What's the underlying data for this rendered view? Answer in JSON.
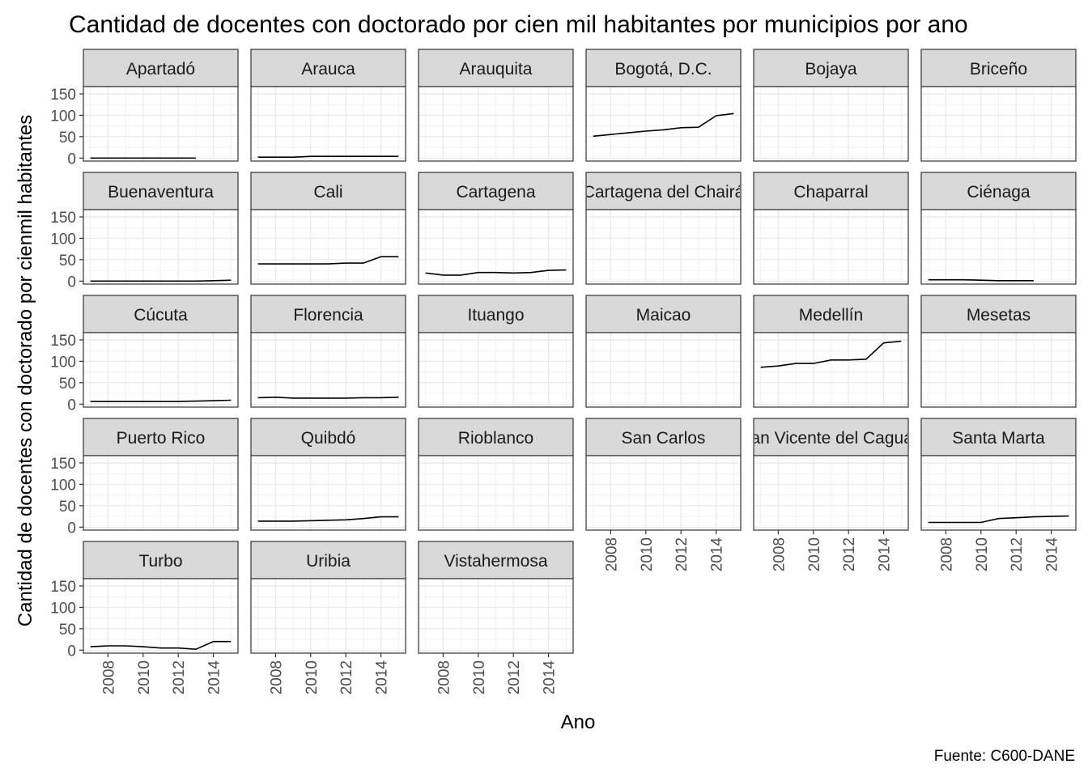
{
  "chart_data": {
    "type": "line",
    "title": "Cantidad de docentes con doctorado por cien mil habitantes por municipios por ano",
    "xlabel": "Ano",
    "ylabel": "Cantidad de docentes con doctorado por cienmil habitantes",
    "caption": "Fuente: C600-DANE",
    "xlim": [
      2006.6,
      2015.4
    ],
    "ylim": [
      -7,
      167
    ],
    "x_ticks": [
      2008,
      2010,
      2012,
      2014
    ],
    "y_ticks": [
      0,
      50,
      100,
      150
    ],
    "grid": true,
    "facet_layout": {
      "columns": 6,
      "rows": 5
    },
    "line_color": "#000000",
    "strip_color": "#d9d9d9",
    "grid_color": "#ebebeb",
    "series": [
      {
        "name": "Apartadó",
        "x": [
          2007,
          2008,
          2009,
          2010,
          2011,
          2012,
          2013
        ],
        "values": [
          0,
          0,
          0,
          0,
          0,
          0,
          0
        ]
      },
      {
        "name": "Arauca",
        "x": [
          2007,
          2008,
          2009,
          2010,
          2011,
          2012,
          2013,
          2014,
          2015
        ],
        "values": [
          2,
          2,
          2,
          4,
          4,
          4,
          4,
          4,
          4
        ]
      },
      {
        "name": "Arauquita",
        "x": [],
        "values": []
      },
      {
        "name": "Bogotá, D.C.",
        "x": [
          2007,
          2008,
          2009,
          2010,
          2011,
          2012,
          2013,
          2014,
          2015
        ],
        "values": [
          51,
          55,
          59,
          63,
          66,
          71,
          72,
          99,
          104
        ]
      },
      {
        "name": "Bojaya",
        "x": [],
        "values": []
      },
      {
        "name": "Briceño",
        "x": [],
        "values": []
      },
      {
        "name": "Buenaventura",
        "x": [
          2007,
          2008,
          2009,
          2010,
          2011,
          2012,
          2013,
          2014,
          2015
        ],
        "values": [
          0,
          0,
          0,
          0,
          0,
          0,
          0,
          1,
          2
        ]
      },
      {
        "name": "Cali",
        "x": [
          2007,
          2008,
          2009,
          2010,
          2011,
          2012,
          2013,
          2014,
          2015
        ],
        "values": [
          40,
          40,
          40,
          40,
          40,
          42,
          42,
          57,
          57
        ]
      },
      {
        "name": "Cartagena",
        "x": [
          2007,
          2008,
          2009,
          2010,
          2011,
          2012,
          2013,
          2014,
          2015
        ],
        "values": [
          19,
          14,
          14,
          20,
          20,
          19,
          20,
          25,
          26
        ]
      },
      {
        "name": "Cartagena del Chairá",
        "x": [],
        "values": []
      },
      {
        "name": "Chaparral",
        "x": [],
        "values": []
      },
      {
        "name": "Ciénaga",
        "x": [
          2007,
          2008,
          2009,
          2010,
          2011,
          2012,
          2013
        ],
        "values": [
          3,
          3,
          3,
          2,
          1,
          1,
          1
        ]
      },
      {
        "name": "Cúcuta",
        "x": [
          2007,
          2008,
          2009,
          2010,
          2011,
          2012,
          2013,
          2014,
          2015
        ],
        "values": [
          6,
          6,
          6,
          6,
          6,
          6,
          7,
          8,
          9
        ]
      },
      {
        "name": "Florencia",
        "x": [
          2007,
          2008,
          2009,
          2010,
          2011,
          2012,
          2013,
          2014,
          2015
        ],
        "values": [
          15,
          16,
          14,
          14,
          14,
          14,
          15,
          15,
          16
        ]
      },
      {
        "name": "Ituango",
        "x": [],
        "values": []
      },
      {
        "name": "Maicao",
        "x": [],
        "values": []
      },
      {
        "name": "Medellín",
        "x": [
          2007,
          2008,
          2009,
          2010,
          2011,
          2012,
          2013,
          2014,
          2015
        ],
        "values": [
          86,
          89,
          95,
          95,
          103,
          103,
          105,
          143,
          147
        ]
      },
      {
        "name": "Mesetas",
        "x": [],
        "values": []
      },
      {
        "name": "Puerto Rico",
        "x": [],
        "values": []
      },
      {
        "name": "Quibdó",
        "x": [
          2007,
          2008,
          2009,
          2010,
          2011,
          2012,
          2013,
          2014,
          2015
        ],
        "values": [
          14,
          14,
          14,
          15,
          16,
          17,
          20,
          24,
          24
        ]
      },
      {
        "name": "Rioblanco",
        "x": [],
        "values": []
      },
      {
        "name": "San Carlos",
        "x": [],
        "values": []
      },
      {
        "name": "San Vicente del Caguán",
        "x": [],
        "values": []
      },
      {
        "name": "Santa Marta",
        "x": [
          2007,
          2008,
          2009,
          2010,
          2011,
          2012,
          2013,
          2014,
          2015
        ],
        "values": [
          11,
          11,
          11,
          11,
          20,
          22,
          24,
          25,
          26
        ]
      },
      {
        "name": "Turbo",
        "x": [
          2007,
          2008,
          2009,
          2010,
          2011,
          2012,
          2013,
          2014,
          2015
        ],
        "values": [
          8,
          10,
          10,
          8,
          5,
          5,
          2,
          20,
          20
        ]
      },
      {
        "name": "Uribia",
        "x": [],
        "values": []
      },
      {
        "name": "Vistahermosa",
        "x": [],
        "values": []
      }
    ]
  }
}
